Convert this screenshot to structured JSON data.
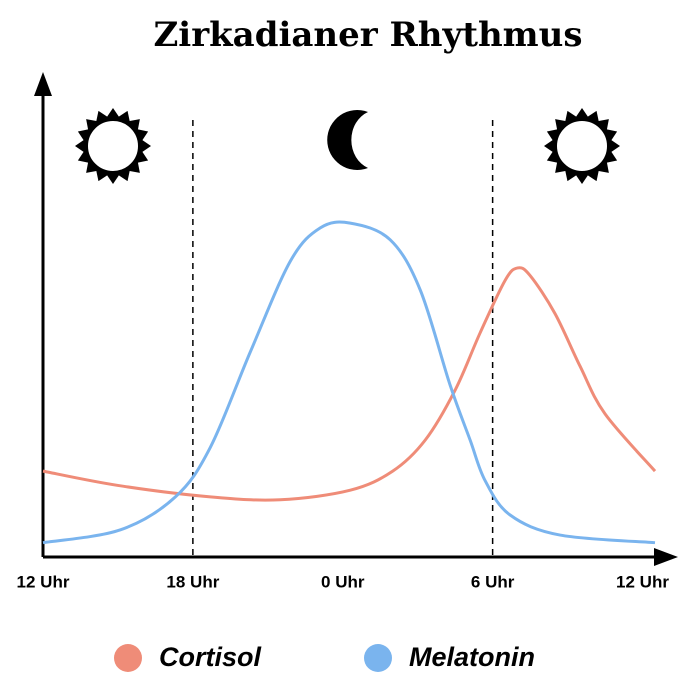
{
  "chart_data": {
    "type": "line",
    "title": "Zirkadianer Rhythmus",
    "xlim": [
      0,
      24.5
    ],
    "ylim": [
      0,
      100
    ],
    "xticks": [
      {
        "value": 0,
        "label": "12 Uhr"
      },
      {
        "value": 6,
        "label": "18 Uhr"
      },
      {
        "value": 12,
        "label": "0 Uhr"
      },
      {
        "value": 18,
        "label": "6 Uhr"
      },
      {
        "value": 24,
        "label": "12 Uhr"
      }
    ],
    "dashed_lines": [
      6,
      18
    ],
    "series": [
      {
        "name": "Cortisol",
        "color": "#ef8c78",
        "x": [
          0,
          3,
          6.7,
          9.5,
          12.3,
          14,
          15.3,
          16.5,
          17.5,
          18.5,
          19,
          19.5,
          20.5,
          21.5,
          22.5,
          24.5
        ],
        "values": [
          18,
          15,
          12.6,
          12,
          14,
          18,
          24.5,
          35,
          47,
          58,
          60.6,
          59,
          51,
          40,
          30,
          18
        ]
      },
      {
        "name": "Melatonin",
        "color": "#7ab4ee",
        "x": [
          0,
          3.1,
          5.3,
          6.7,
          8.3,
          9.9,
          11.1,
          12.3,
          13.9,
          15.1,
          16.3,
          17.1,
          17.7,
          18.7,
          20.7,
          24.5
        ],
        "values": [
          3,
          5.7,
          12.6,
          23,
          43,
          62,
          69,
          70,
          66.5,
          56,
          36,
          24.5,
          16,
          8.8,
          4.6,
          3
        ]
      }
    ]
  }
}
